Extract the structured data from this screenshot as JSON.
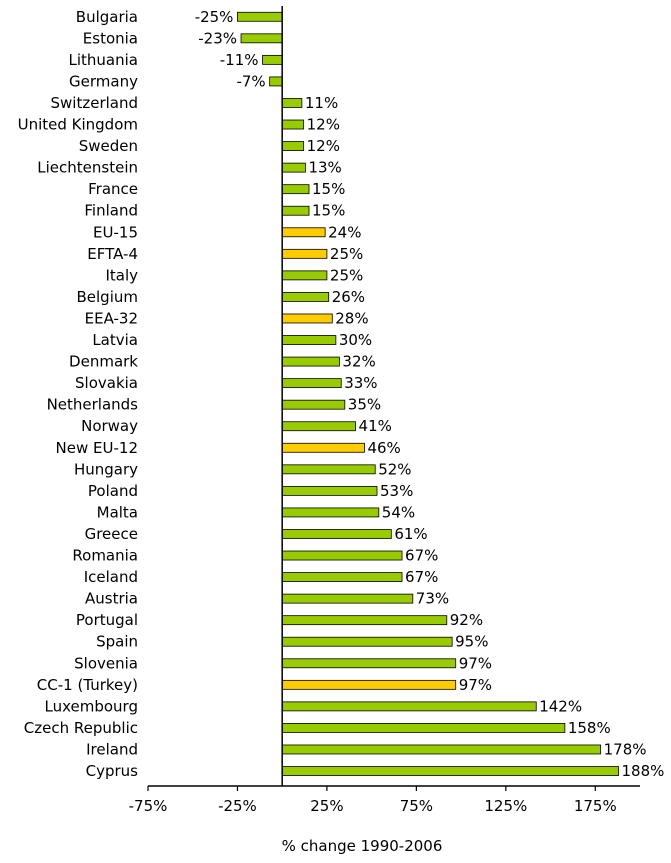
{
  "chart_data": {
    "type": "bar",
    "orientation": "horizontal",
    "xlabel": "% change 1990-2006",
    "ylabel": "",
    "title": "",
    "xlim": [
      -75,
      200
    ],
    "xticks": [
      -75,
      -25,
      25,
      75,
      125,
      175
    ],
    "xtick_labels": [
      "-75%",
      "-25%",
      "25%",
      "75%",
      "125%",
      "175%"
    ],
    "value_suffix": "%",
    "colors": {
      "country": "#99CC00",
      "aggregate": "#FFCC00",
      "outline": "#000000"
    },
    "categories": [
      "Bulgaria",
      "Estonia",
      "Lithuania",
      "Germany",
      "Switzerland",
      "United Kingdom",
      "Sweden",
      "Liechtenstein",
      "France",
      "Finland",
      "EU-15",
      "EFTA-4",
      "Italy",
      "Belgium",
      "EEA-32",
      "Latvia",
      "Denmark",
      "Slovakia",
      "Netherlands",
      "Norway",
      "New EU-12",
      "Hungary",
      "Poland",
      "Malta",
      "Greece",
      "Romania",
      "Iceland",
      "Austria",
      "Portugal",
      "Spain",
      "Slovenia",
      "CC-1 (Turkey)",
      "Luxembourg",
      "Czech Republic",
      "Ireland",
      "Cyprus"
    ],
    "values": [
      -25,
      -23,
      -11,
      -7,
      11,
      12,
      12,
      13,
      15,
      15,
      24,
      25,
      25,
      26,
      28,
      30,
      32,
      33,
      35,
      41,
      46,
      52,
      53,
      54,
      61,
      67,
      67,
      73,
      92,
      95,
      97,
      97,
      142,
      158,
      178,
      188
    ],
    "aggregates": [
      "EU-15",
      "EFTA-4",
      "EEA-32",
      "New EU-12",
      "CC-1 (Turkey)"
    ]
  }
}
